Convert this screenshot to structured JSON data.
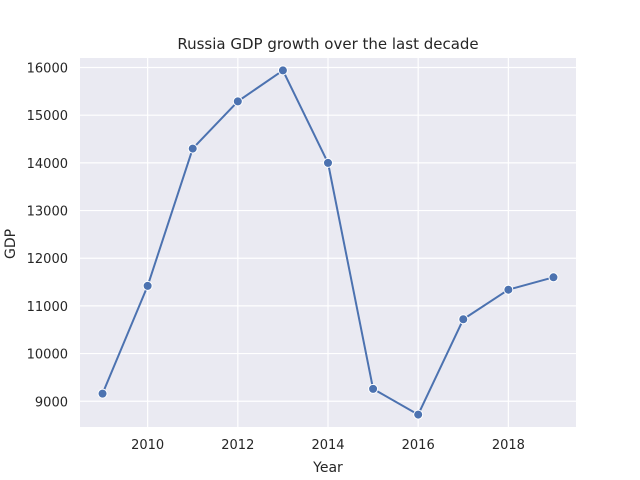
{
  "chart_data": {
    "type": "line",
    "title": "Russia GDP growth over the last decade",
    "xlabel": "Year",
    "ylabel": "GDP",
    "x": [
      2009,
      2010,
      2011,
      2012,
      2013,
      2014,
      2015,
      2016,
      2017,
      2018,
      2019
    ],
    "series": [
      {
        "values": [
          9160,
          11420,
          14300,
          15290,
          15940,
          14000,
          9260,
          8720,
          10720,
          11340,
          11600
        ]
      }
    ],
    "xlim": [
      2008.5,
      2019.5
    ],
    "ylim": [
      8460,
      16200
    ],
    "xticks": [
      2010,
      2012,
      2014,
      2016,
      2018
    ],
    "yticks": [
      9000,
      10000,
      11000,
      12000,
      13000,
      14000,
      15000,
      16000
    ],
    "grid": true,
    "colors": {
      "background": "#eaeaf2",
      "grid": "#ffffff",
      "line": "#4c72b0",
      "marker_edge": "#ffffff"
    }
  }
}
